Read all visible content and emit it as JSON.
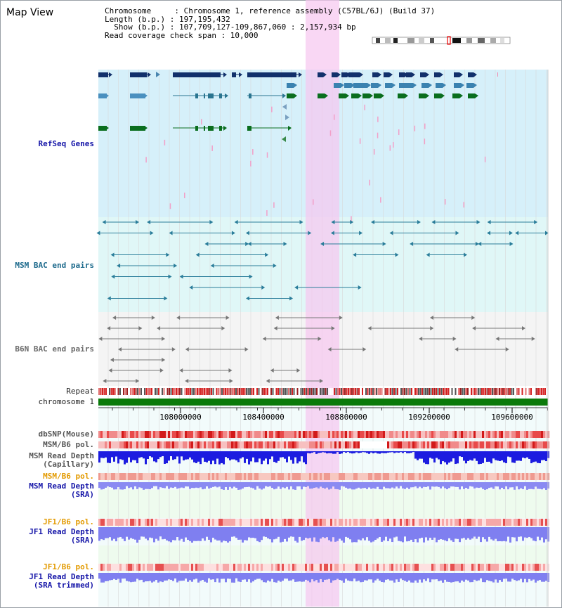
{
  "window": {
    "title": "Map View"
  },
  "info": {
    "chromosome": "Chromosome     : Chromosome 1, reference assembly (C57BL/6J) (Build 37)",
    "length": "Length (b.p.) : 197,195,432",
    "show": "  Show (b.p.) : 107,709,127-109,867,060 : 2,157,934 bp",
    "coverage": "Read coverage check span : 10,000"
  },
  "tracks": {
    "refseq": "RefSeq Genes",
    "msm_bac": "MSM BAC end pairs",
    "b6n_bac": "B6N BAC end pairs",
    "repeat": "Repeat",
    "chromosome": "chromosome 1",
    "dbsnp": "dbSNP(Mouse)",
    "msm_b6_pol": "MSM/B6 pol.",
    "msm_depth_cap": "MSM Read Depth\n(Capillary)",
    "msm_b6_pol_sra": "MSM/B6 pol.",
    "msm_depth_sra": "MSM Read Depth\n(SRA)",
    "jf1_b6_pol": "JF1/B6 pol.",
    "jf1_depth_sra": "JF1 Read Depth\n(SRA)",
    "jf1_b6_pol_trim": "JF1/B6 pol.",
    "jf1_depth_trim": "JF1 Read Depth\n(SRA trimmed)"
  },
  "axis": {
    "ticks": [
      "108000000",
      "108400000",
      "108800000",
      "109200000",
      "109600000"
    ]
  },
  "colors": {
    "refseq_bg": "#d6f0fa",
    "msm_bg": "#e0f7f7",
    "b6n_bg": "#f4f4f4",
    "highlight": "#f7c6f0",
    "chrom_bar": "#0a7a0a",
    "depth_blue": "#1c1ce0",
    "depth_light": "#7f7ff0"
  }
}
